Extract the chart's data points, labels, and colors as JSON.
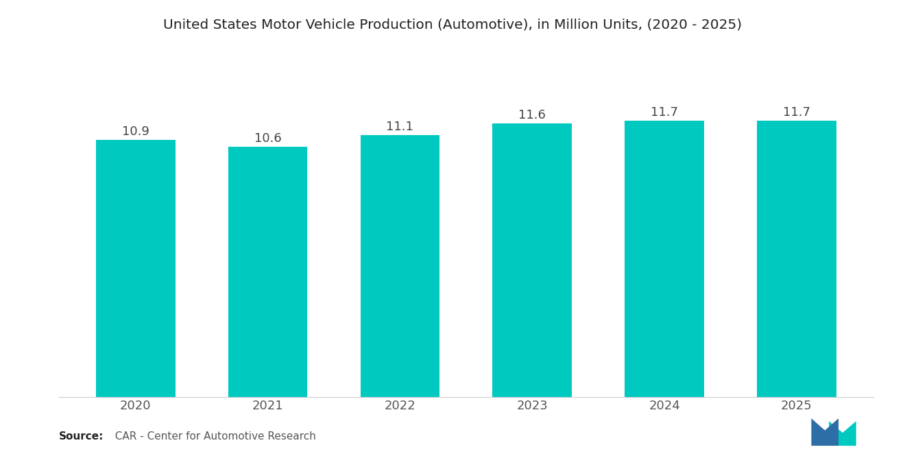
{
  "title": "United States Motor Vehicle Production (Automotive), in Million Units, (2020 - 2025)",
  "categories": [
    "2020",
    "2021",
    "2022",
    "2023",
    "2024",
    "2025"
  ],
  "values": [
    10.9,
    10.6,
    11.1,
    11.6,
    11.7,
    11.7
  ],
  "bar_color": "#00C9C0",
  "background_color": "#ffffff",
  "title_fontsize": 14.5,
  "label_fontsize": 13,
  "tick_fontsize": 13,
  "source_bold": "Source:",
  "source_rest": "  CAR - Center for Automotive Research",
  "ylim": [
    0,
    14.5
  ],
  "bar_width": 0.6,
  "logo_blue": "#2E6EA6",
  "logo_teal": "#00C9C0"
}
